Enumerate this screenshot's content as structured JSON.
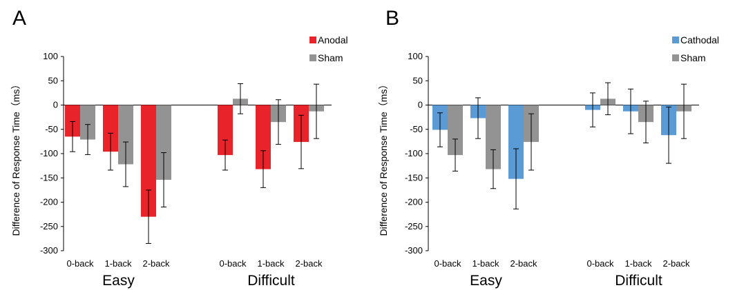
{
  "chart_data": [
    {
      "type": "bar",
      "panel_label": "A",
      "ylabel": "Difference of Response Time（ms）",
      "ylim": [
        -300,
        100
      ],
      "yticks": [
        100,
        50,
        0,
        -50,
        -100,
        -150,
        -200,
        -250,
        -300
      ],
      "groups": [
        {
          "label": "Easy",
          "categories": [
            "0-back",
            "1-back",
            "2-back"
          ]
        },
        {
          "label": "Difficult",
          "categories": [
            "0-back",
            "1-back",
            "2-back"
          ]
        }
      ],
      "legend_position": "top-right",
      "series": [
        {
          "name": "Anodal",
          "color": "#e8232a",
          "values": [
            -65,
            -96,
            -230,
            -103,
            -132,
            -76
          ],
          "errors": [
            31,
            38,
            55,
            31,
            38,
            55
          ]
        },
        {
          "name": "Sham",
          "color": "#939393",
          "values": [
            -71,
            -122,
            -154,
            13,
            -35,
            -13
          ],
          "errors": [
            31,
            46,
            56,
            31,
            46,
            56
          ]
        }
      ]
    },
    {
      "type": "bar",
      "panel_label": "B",
      "ylabel": "Difference of Response Time（ms）",
      "ylim": [
        -300,
        100
      ],
      "yticks": [
        100,
        50,
        0,
        -50,
        -100,
        -150,
        -200,
        -250,
        -300
      ],
      "groups": [
        {
          "label": "Easy",
          "categories": [
            "0-back",
            "1-back",
            "2-back"
          ]
        },
        {
          "label": "Difficult",
          "categories": [
            "0-back",
            "1-back",
            "2-back"
          ]
        }
      ],
      "legend_position": "top-right",
      "series": [
        {
          "name": "Cathodal",
          "color": "#5b9bd5",
          "values": [
            -51,
            -27,
            -152,
            -10,
            -13,
            -62
          ],
          "errors": [
            35,
            42,
            62,
            35,
            46,
            58
          ]
        },
        {
          "name": "Sham",
          "color": "#939393",
          "values": [
            -103,
            -132,
            -76,
            13,
            -35,
            -13
          ],
          "errors": [
            33,
            40,
            58,
            33,
            43,
            56
          ]
        }
      ]
    }
  ]
}
